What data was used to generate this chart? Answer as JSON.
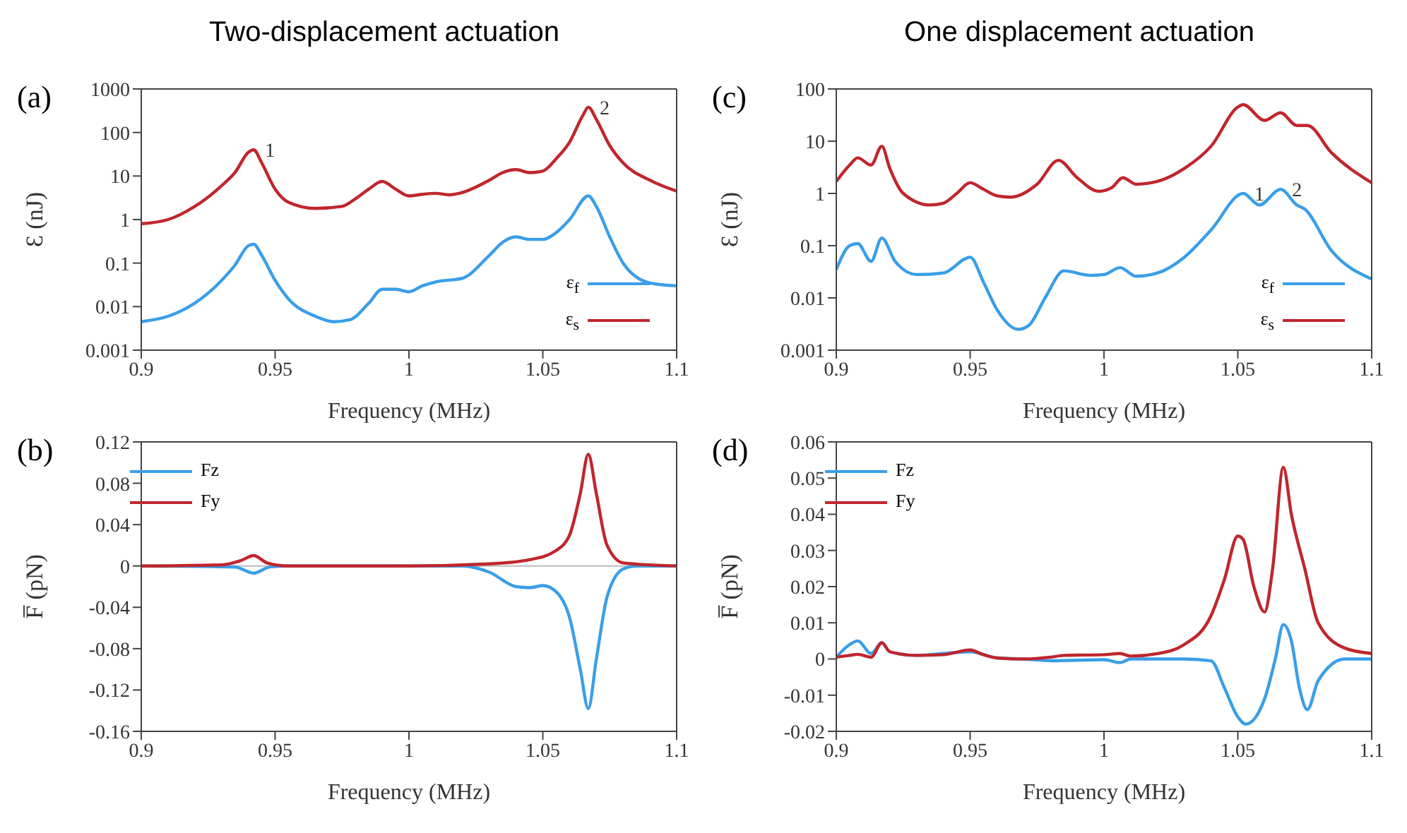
{
  "chart_data": [
    {
      "type": "line",
      "title": "Two-displacement actuation",
      "xlabel": "Frequency (MHz)",
      "ylabel": "Ɛ (nJ)",
      "log": "y",
      "xlim": [
        0.9,
        1.1
      ],
      "xticks": [
        0.9,
        0.95,
        1,
        1.05,
        1.1
      ],
      "ylim": [
        0.001,
        1000
      ],
      "yticks": [
        0.001,
        0.01,
        0.1,
        1,
        10,
        100,
        1000
      ],
      "legend": "bottom right",
      "grid": false,
      "annotations": [
        "(a)",
        {
          "text": "1",
          "x": 0.942,
          "y": 40
        },
        {
          "text": "2",
          "x": 1.067,
          "y": 380
        }
      ],
      "series": [
        {
          "name": "ε$_{f}$",
          "color": "#3a9ee8",
          "x": [
            0.9,
            0.91,
            0.92,
            0.93,
            0.935,
            0.94,
            0.942,
            0.945,
            0.95,
            0.955,
            0.965,
            0.972,
            0.978,
            0.985,
            0.99,
            0.995,
            1.0,
            1.005,
            1.01,
            1.02,
            1.03,
            1.035,
            1.04,
            1.045,
            1.05,
            1.055,
            1.06,
            1.067,
            1.07,
            1.075,
            1.08,
            1.09,
            1.1
          ],
          "values": [
            0.0045,
            0.006,
            0.012,
            0.04,
            0.09,
            0.25,
            0.27,
            0.15,
            0.04,
            0.015,
            0.006,
            0.0045,
            0.005,
            0.012,
            0.025,
            0.025,
            0.022,
            0.03,
            0.037,
            0.045,
            0.15,
            0.3,
            0.4,
            0.35,
            0.35,
            0.5,
            1.0,
            3.5,
            2,
            0.4,
            0.1,
            0.035,
            0.03
          ]
        },
        {
          "name": "ε$_{s}$",
          "color": "#c0262d",
          "x": [
            0.9,
            0.91,
            0.92,
            0.93,
            0.935,
            0.94,
            0.942,
            0.945,
            0.95,
            0.955,
            0.965,
            0.975,
            0.98,
            0.985,
            0.99,
            0.995,
            1.0,
            1.005,
            1.01,
            1.015,
            1.02,
            1.03,
            1.035,
            1.04,
            1.045,
            1.05,
            1.055,
            1.06,
            1.065,
            1.067,
            1.07,
            1.075,
            1.08,
            1.09,
            1.1
          ],
          "values": [
            0.8,
            1.0,
            2,
            6,
            12,
            35,
            40,
            20,
            5,
            2.5,
            1.8,
            2,
            3,
            5,
            7.5,
            5,
            3.5,
            3.8,
            4,
            3.7,
            4.2,
            8,
            12,
            14,
            12,
            13,
            25,
            60,
            250,
            380,
            200,
            50,
            20,
            8,
            4.5
          ]
        }
      ]
    },
    {
      "type": "line",
      "title": "One displacement actuation",
      "xlabel": "Frequency (MHz)",
      "ylabel": "Ɛ (nJ)",
      "log": "y",
      "xlim": [
        0.9,
        1.1
      ],
      "xticks": [
        0.9,
        0.95,
        1,
        1.05,
        1.1
      ],
      "ylim": [
        0.001,
        100
      ],
      "yticks": [
        0.001,
        0.01,
        0.1,
        1,
        10,
        100
      ],
      "legend": "bottom right",
      "grid": false,
      "annotations": [
        "(c)",
        {
          "text": "1",
          "x": 1.052,
          "y": 1.0
        },
        {
          "text": "2",
          "x": 1.066,
          "y": 1.2
        }
      ],
      "series": [
        {
          "name": "ε$_{f}$",
          "color": "#3a9ee8",
          "x": [
            0.9,
            0.905,
            0.908,
            0.913,
            0.917,
            0.922,
            0.93,
            0.94,
            0.95,
            0.955,
            0.96,
            0.968,
            0.972,
            0.978,
            0.985,
            0.995,
            1.0,
            1.006,
            1.012,
            1.02,
            1.03,
            1.04,
            1.052,
            1.058,
            1.066,
            1.072,
            1.075,
            1.085,
            1.1
          ],
          "values": [
            0.035,
            0.1,
            0.11,
            0.05,
            0.14,
            0.05,
            0.028,
            0.03,
            0.06,
            0.02,
            0.006,
            0.0025,
            0.003,
            0.01,
            0.033,
            0.027,
            0.028,
            0.038,
            0.026,
            0.03,
            0.06,
            0.2,
            1.0,
            0.6,
            1.2,
            0.6,
            0.5,
            0.08,
            0.023
          ]
        },
        {
          "name": "ε$_{s}$",
          "color": "#c0262d",
          "x": [
            0.9,
            0.905,
            0.908,
            0.913,
            0.917,
            0.92,
            0.925,
            0.935,
            0.94,
            0.945,
            0.95,
            0.955,
            0.96,
            0.965,
            0.975,
            0.983,
            0.99,
            0.998,
            1.003,
            1.007,
            1.012,
            1.02,
            1.03,
            1.04,
            1.05,
            1.052,
            1.06,
            1.066,
            1.072,
            1.076,
            1.085,
            1.1
          ],
          "values": [
            1.7,
            3.5,
            4.8,
            3.5,
            8,
            3,
            1,
            0.6,
            0.65,
            1.0,
            1.6,
            1.2,
            0.9,
            0.85,
            1.5,
            4.3,
            2,
            1.1,
            1.3,
            2,
            1.5,
            1.7,
            3,
            8,
            45,
            50,
            25,
            35,
            20,
            20,
            6,
            1.6
          ]
        }
      ]
    },
    {
      "type": "line",
      "xlabel": "Frequency (MHz)",
      "ylabel": "F̅ (pN)",
      "xlim": [
        0.9,
        1.1
      ],
      "xticks": [
        0.9,
        0.95,
        1,
        1.05,
        1.1
      ],
      "ylim": [
        -0.16,
        0.12
      ],
      "yticks": [
        -0.16,
        -0.12,
        -0.08,
        -0.04,
        0,
        0.04,
        0.08,
        0.12
      ],
      "legend": "top left",
      "grid": false,
      "annotations": [
        "(b)"
      ],
      "ref_lines": [
        {
          "axis": "y",
          "value": 0,
          "color": "#c8c8c8"
        }
      ],
      "series": [
        {
          "name": "Fz",
          "color": "#3a9ee8",
          "x": [
            0.9,
            0.935,
            0.942,
            0.948,
            0.955,
            1.02,
            1.03,
            1.04,
            1.045,
            1.05,
            1.055,
            1.06,
            1.064,
            1.067,
            1.07,
            1.074,
            1.08,
            1.085,
            1.1
          ],
          "values": [
            0,
            -0.001,
            -0.007,
            -0.001,
            0,
            0,
            -0.006,
            -0.02,
            -0.021,
            -0.019,
            -0.025,
            -0.05,
            -0.1,
            -0.138,
            -0.09,
            -0.03,
            -0.003,
            0,
            0
          ]
        },
        {
          "name": "Fy",
          "color": "#c0262d",
          "x": [
            0.9,
            0.93,
            0.937,
            0.942,
            0.947,
            0.955,
            1.0,
            1.03,
            1.045,
            1.055,
            1.06,
            1.064,
            1.067,
            1.07,
            1.074,
            1.08,
            1.1
          ],
          "values": [
            0,
            0.001,
            0.005,
            0.01,
            0.003,
            0,
            0,
            0.002,
            0.006,
            0.015,
            0.03,
            0.07,
            0.108,
            0.07,
            0.02,
            0.003,
            0
          ]
        }
      ]
    },
    {
      "type": "line",
      "xlabel": "Frequency (MHz)",
      "ylabel": "F̅ (pN)",
      "xlim": [
        0.9,
        1.1
      ],
      "xticks": [
        0.9,
        0.95,
        1,
        1.05,
        1.1
      ],
      "ylim": [
        -0.02,
        0.06
      ],
      "yticks": [
        -0.02,
        -0.01,
        0,
        0.01,
        0.02,
        0.03,
        0.04,
        0.05,
        0.06
      ],
      "legend": "top left",
      "grid": false,
      "annotations": [
        "(d)"
      ],
      "series": [
        {
          "name": "Fz",
          "color": "#3a9ee8",
          "x": [
            0.9,
            0.905,
            0.908,
            0.913,
            0.917,
            0.92,
            0.93,
            0.95,
            0.96,
            0.97,
            0.98,
            1.0,
            1.006,
            1.01,
            1.03,
            1.04,
            1.045,
            1.05,
            1.053,
            1.06,
            1.064,
            1.067,
            1.07,
            1.073,
            1.076,
            1.08,
            1.09,
            1.1
          ],
          "values": [
            0.0005,
            0.004,
            0.005,
            0.0015,
            0.0045,
            0.002,
            0.001,
            0.002,
            0.0003,
            0,
            -0.0005,
            -0.0002,
            -0.001,
            0,
            0,
            -0.0005,
            -0.008,
            -0.016,
            -0.018,
            -0.011,
            0,
            0.0095,
            0.005,
            -0.008,
            -0.014,
            -0.006,
            0,
            0
          ]
        },
        {
          "name": "Fy",
          "color": "#c0262d",
          "x": [
            0.9,
            0.905,
            0.908,
            0.913,
            0.917,
            0.92,
            0.93,
            0.94,
            0.95,
            0.955,
            0.96,
            0.97,
            0.98,
            0.985,
            1.0,
            1.006,
            1.01,
            1.02,
            1.03,
            1.04,
            1.045,
            1.05,
            1.052,
            1.056,
            1.06,
            1.063,
            1.067,
            1.07,
            1.075,
            1.08,
            1.09,
            1.1
          ],
          "values": [
            0.0005,
            0.001,
            0.0013,
            0.0005,
            0.0045,
            0.002,
            0.001,
            0.0012,
            0.0025,
            0.0012,
            0.0003,
            0,
            0.0005,
            0.001,
            0.0012,
            0.0015,
            0.0008,
            0.0015,
            0.004,
            0.012,
            0.022,
            0.034,
            0.033,
            0.02,
            0.013,
            0.025,
            0.053,
            0.04,
            0.025,
            0.01,
            0.003,
            0.0015
          ]
        }
      ]
    }
  ]
}
